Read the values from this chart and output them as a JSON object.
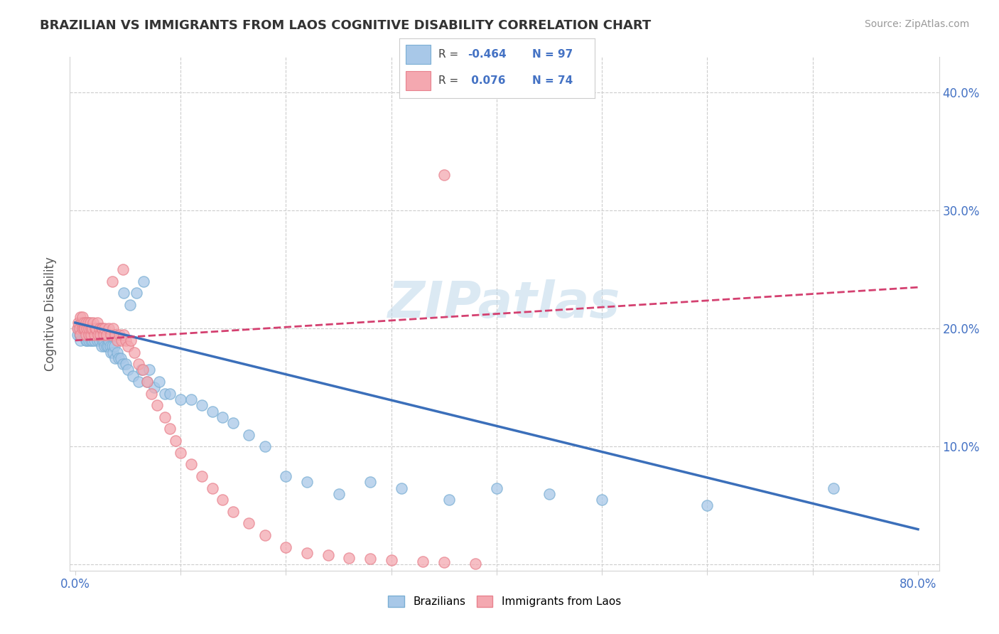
{
  "title": "BRAZILIAN VS IMMIGRANTS FROM LAOS COGNITIVE DISABILITY CORRELATION CHART",
  "source": "Source: ZipAtlas.com",
  "ylabel": "Cognitive Disability",
  "yticks": [
    0.0,
    0.1,
    0.2,
    0.3,
    0.4
  ],
  "xticks": [
    0.0,
    0.1,
    0.2,
    0.3,
    0.4,
    0.5,
    0.6,
    0.7,
    0.8
  ],
  "xlim": [
    -0.005,
    0.82
  ],
  "ylim": [
    -0.005,
    0.43
  ],
  "blue_color": "#a8c8e8",
  "pink_color": "#f4a8b0",
  "blue_edge_color": "#7bafd4",
  "pink_edge_color": "#e8828e",
  "blue_line_color": "#3b6fba",
  "pink_line_color": "#d44070",
  "watermark": "ZIPatlas",
  "blue_trend_x": [
    0.0,
    0.8
  ],
  "blue_trend_y": [
    0.205,
    0.03
  ],
  "pink_trend_x": [
    0.0,
    0.8
  ],
  "pink_trend_y": [
    0.19,
    0.235
  ],
  "blue_scatter_x": [
    0.002,
    0.003,
    0.004,
    0.005,
    0.005,
    0.006,
    0.007,
    0.007,
    0.008,
    0.008,
    0.009,
    0.009,
    0.01,
    0.01,
    0.01,
    0.011,
    0.011,
    0.012,
    0.012,
    0.013,
    0.013,
    0.014,
    0.014,
    0.015,
    0.015,
    0.015,
    0.016,
    0.016,
    0.017,
    0.017,
    0.018,
    0.018,
    0.019,
    0.019,
    0.02,
    0.02,
    0.021,
    0.021,
    0.022,
    0.022,
    0.023,
    0.023,
    0.024,
    0.025,
    0.025,
    0.026,
    0.027,
    0.028,
    0.029,
    0.03,
    0.031,
    0.032,
    0.033,
    0.034,
    0.035,
    0.036,
    0.037,
    0.038,
    0.04,
    0.041,
    0.043,
    0.045,
    0.046,
    0.048,
    0.05,
    0.052,
    0.055,
    0.058,
    0.06,
    0.063,
    0.065,
    0.068,
    0.07,
    0.075,
    0.08,
    0.085,
    0.09,
    0.1,
    0.11,
    0.12,
    0.13,
    0.14,
    0.15,
    0.165,
    0.18,
    0.2,
    0.22,
    0.25,
    0.28,
    0.31,
    0.355,
    0.4,
    0.45,
    0.5,
    0.6,
    0.72
  ],
  "blue_scatter_y": [
    0.195,
    0.2,
    0.195,
    0.205,
    0.19,
    0.2,
    0.195,
    0.205,
    0.195,
    0.2,
    0.195,
    0.205,
    0.19,
    0.195,
    0.2,
    0.19,
    0.2,
    0.195,
    0.205,
    0.19,
    0.195,
    0.2,
    0.195,
    0.19,
    0.195,
    0.2,
    0.19,
    0.195,
    0.2,
    0.195,
    0.195,
    0.19,
    0.2,
    0.195,
    0.195,
    0.2,
    0.19,
    0.195,
    0.195,
    0.2,
    0.19,
    0.195,
    0.2,
    0.185,
    0.195,
    0.19,
    0.19,
    0.185,
    0.195,
    0.185,
    0.185,
    0.19,
    0.185,
    0.18,
    0.185,
    0.18,
    0.185,
    0.175,
    0.18,
    0.175,
    0.175,
    0.17,
    0.23,
    0.17,
    0.165,
    0.22,
    0.16,
    0.23,
    0.155,
    0.165,
    0.24,
    0.155,
    0.165,
    0.15,
    0.155,
    0.145,
    0.145,
    0.14,
    0.14,
    0.135,
    0.13,
    0.125,
    0.12,
    0.11,
    0.1,
    0.075,
    0.07,
    0.06,
    0.07,
    0.065,
    0.055,
    0.065,
    0.06,
    0.055,
    0.05,
    0.065
  ],
  "pink_scatter_x": [
    0.002,
    0.003,
    0.004,
    0.005,
    0.005,
    0.006,
    0.007,
    0.007,
    0.008,
    0.008,
    0.009,
    0.01,
    0.01,
    0.011,
    0.012,
    0.013,
    0.013,
    0.014,
    0.015,
    0.015,
    0.016,
    0.017,
    0.018,
    0.019,
    0.02,
    0.021,
    0.022,
    0.023,
    0.024,
    0.025,
    0.026,
    0.027,
    0.028,
    0.03,
    0.032,
    0.034,
    0.036,
    0.038,
    0.04,
    0.042,
    0.044,
    0.046,
    0.048,
    0.05,
    0.053,
    0.056,
    0.06,
    0.064,
    0.068,
    0.072,
    0.078,
    0.085,
    0.09,
    0.095,
    0.1,
    0.11,
    0.12,
    0.13,
    0.14,
    0.15,
    0.165,
    0.18,
    0.2,
    0.22,
    0.24,
    0.26,
    0.28,
    0.3,
    0.33,
    0.35,
    0.38,
    0.035,
    0.045,
    0.35
  ],
  "pink_scatter_y": [
    0.2,
    0.205,
    0.2,
    0.21,
    0.195,
    0.205,
    0.2,
    0.21,
    0.2,
    0.205,
    0.2,
    0.195,
    0.205,
    0.2,
    0.205,
    0.195,
    0.2,
    0.205,
    0.195,
    0.2,
    0.2,
    0.205,
    0.195,
    0.2,
    0.2,
    0.205,
    0.195,
    0.2,
    0.195,
    0.2,
    0.2,
    0.195,
    0.2,
    0.195,
    0.2,
    0.195,
    0.2,
    0.195,
    0.19,
    0.195,
    0.19,
    0.195,
    0.19,
    0.185,
    0.19,
    0.18,
    0.17,
    0.165,
    0.155,
    0.145,
    0.135,
    0.125,
    0.115,
    0.105,
    0.095,
    0.085,
    0.075,
    0.065,
    0.055,
    0.045,
    0.035,
    0.025,
    0.015,
    0.01,
    0.008,
    0.006,
    0.005,
    0.004,
    0.003,
    0.002,
    0.001,
    0.24,
    0.25,
    0.33
  ]
}
